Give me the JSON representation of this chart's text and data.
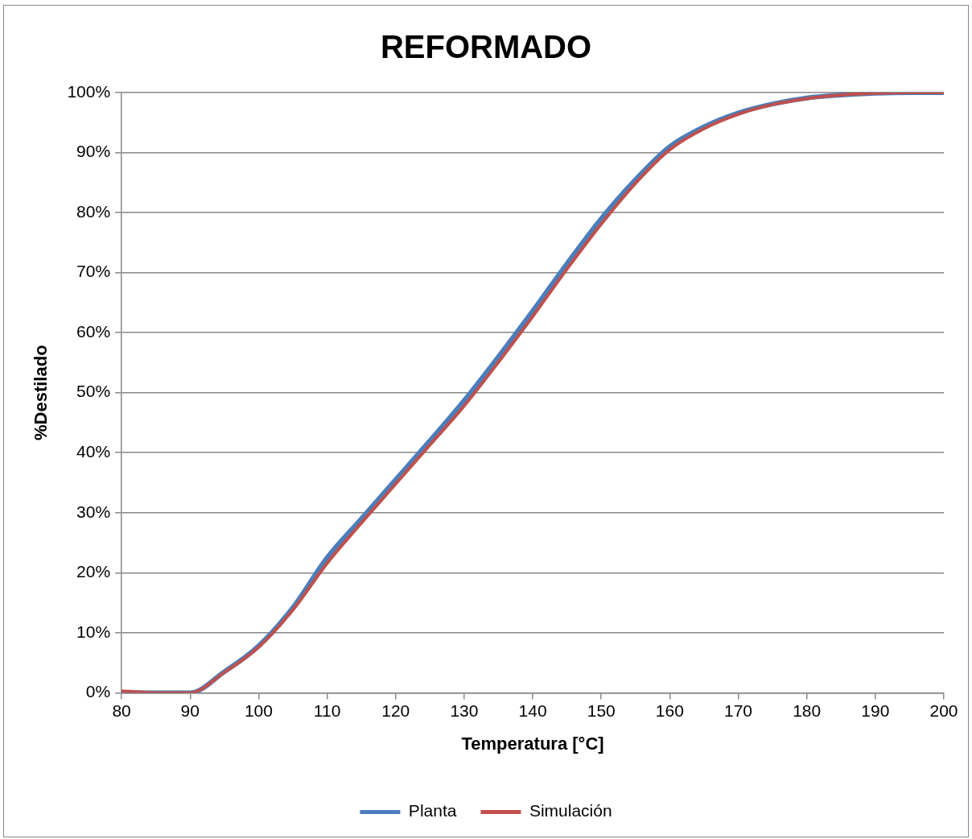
{
  "chart_data": {
    "type": "line",
    "title": "REFORMADO",
    "xlabel": "Temperatura [°C]",
    "ylabel": "%Destilado",
    "x": [
      80,
      85,
      90,
      95,
      100,
      105,
      110,
      115,
      120,
      125,
      130,
      135,
      140,
      145,
      150,
      155,
      160,
      165,
      170,
      175,
      180,
      185,
      190,
      195,
      200
    ],
    "series": [
      {
        "name": "Planta",
        "color": "#4a7ebb",
        "values": [
          0,
          0,
          0,
          3.5,
          7.8,
          14.2,
          22.5,
          29,
          35.5,
          42,
          48.7,
          56,
          63.6,
          71.5,
          79,
          85.5,
          91,
          94.3,
          96.6,
          98.1,
          99.1,
          99.6,
          99.9,
          100,
          100
        ]
      },
      {
        "name": "Simulación",
        "color": "#c0504d",
        "values": [
          0.3,
          0,
          0,
          3.4,
          7.6,
          13.8,
          21.6,
          28.3,
          34.8,
          41.3,
          47.8,
          55.1,
          62.7,
          70.6,
          78.1,
          84.9,
          90.5,
          94,
          96.4,
          98,
          99,
          99.6,
          99.9,
          100,
          100
        ]
      }
    ],
    "xlim": [
      80,
      200
    ],
    "xticks": [
      80,
      90,
      100,
      110,
      120,
      130,
      140,
      150,
      160,
      170,
      180,
      190,
      200
    ],
    "ylim": [
      0,
      100
    ],
    "yticks": [
      {
        "value": 0,
        "label": "0%"
      },
      {
        "value": 10,
        "label": "10%"
      },
      {
        "value": 20,
        "label": "20%"
      },
      {
        "value": 30,
        "label": "30%"
      },
      {
        "value": 40,
        "label": "40%"
      },
      {
        "value": 50,
        "label": "50%"
      },
      {
        "value": 60,
        "label": "60%"
      },
      {
        "value": 70,
        "label": "70%"
      },
      {
        "value": 80,
        "label": "80%"
      },
      {
        "value": 90,
        "label": "90%"
      },
      {
        "value": 100,
        "label": "100%"
      }
    ],
    "grid": "y",
    "legend": "bottom",
    "marker": "none",
    "line_style": "solid"
  }
}
